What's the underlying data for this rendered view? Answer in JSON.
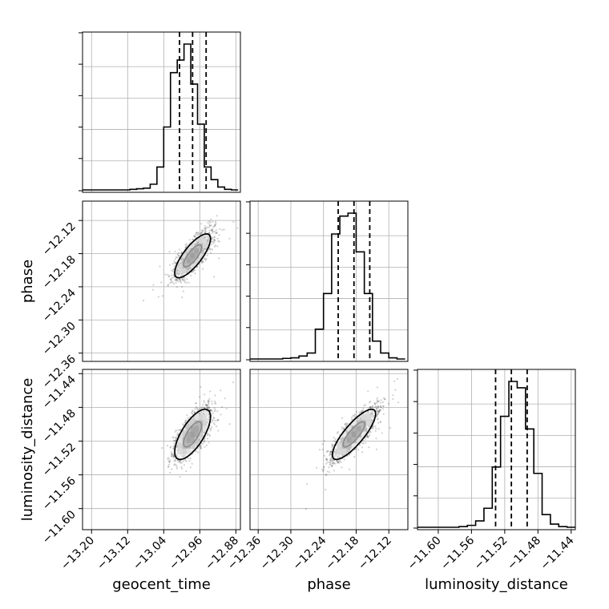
{
  "chart_data": {
    "type": "corner",
    "parameters": [
      "geocent_time",
      "phase",
      "luminosity_distance"
    ],
    "axis_labels": {
      "geocent_time": "geocent_time",
      "phase": "phase",
      "luminosity_distance": "luminosity_distance"
    },
    "ranges": {
      "geocent_time": [
        -13.22,
        -12.87
      ],
      "phase": [
        -12.375,
        -12.085
      ],
      "luminosity_distance": [
        -11.625,
        -11.435
      ]
    },
    "ticks": {
      "geocent_time": [
        "−13.20",
        "−13.12",
        "−13.04",
        "−12.96",
        "−12.88"
      ],
      "phase": [
        "−12.36",
        "−12.30",
        "−12.24",
        "−12.18",
        "−12.12"
      ],
      "luminosity_distance": [
        "−11.60",
        "−11.56",
        "−11.52",
        "−11.48",
        "−11.44"
      ]
    },
    "tick_values": {
      "geocent_time": [
        -13.2,
        -13.12,
        -13.04,
        -12.96,
        -12.88
      ],
      "phase": [
        -12.36,
        -12.3,
        -12.24,
        -12.18,
        -12.12
      ],
      "luminosity_distance": [
        -11.6,
        -11.56,
        -11.52,
        -11.48,
        -11.44
      ]
    },
    "quantiles": {
      "geocent_time": [
        -13.005,
        -12.976,
        -12.946
      ],
      "phase": [
        -12.213,
        -12.184,
        -12.155
      ],
      "luminosity_distance": [
        -11.531,
        -11.512,
        -11.493
      ]
    },
    "histograms": {
      "geocent_time": {
        "bin_edges": [
          -13.22,
          -13.205,
          -13.19,
          -13.175,
          -13.16,
          -13.145,
          -13.13,
          -13.115,
          -13.1,
          -13.085,
          -13.07,
          -13.055,
          -13.04,
          -13.025,
          -13.01,
          -12.995,
          -12.98,
          -12.965,
          -12.95,
          -12.935,
          -12.92,
          -12.905,
          -12.89,
          -12.875
        ],
        "counts": [
          0,
          0,
          0,
          0,
          0,
          0,
          0,
          1,
          2,
          3,
          10,
          40,
          110,
          205,
          227,
          255,
          185,
          115,
          40,
          18,
          5,
          1,
          0
        ]
      },
      "phase": {
        "bin_edges": [
          -12.375,
          -12.36,
          -12.345,
          -12.33,
          -12.315,
          -12.3,
          -12.285,
          -12.27,
          -12.255,
          -12.24,
          -12.225,
          -12.21,
          -12.195,
          -12.18,
          -12.165,
          -12.15,
          -12.135,
          -12.12,
          -12.105,
          -12.09
        ],
        "counts": [
          0,
          0,
          0,
          0,
          1,
          2,
          5,
          10,
          50,
          110,
          210,
          240,
          245,
          180,
          110,
          30,
          10,
          2,
          0
        ]
      },
      "luminosity_distance": {
        "bin_edges": [
          -11.625,
          -11.615,
          -11.605,
          -11.595,
          -11.585,
          -11.575,
          -11.565,
          -11.555,
          -11.545,
          -11.535,
          -11.525,
          -11.515,
          -11.505,
          -11.495,
          -11.485,
          -11.475,
          -11.465,
          -11.455,
          -11.445,
          -11.435
        ],
        "counts": [
          0,
          0,
          0,
          0,
          0,
          1,
          3,
          10,
          30,
          95,
          175,
          230,
          220,
          155,
          85,
          20,
          5,
          1,
          0
        ]
      }
    },
    "joint": [
      {
        "x": "geocent_time",
        "y": "phase",
        "center": [
          -12.976,
          -12.184
        ],
        "sd": [
          0.02,
          0.02
        ],
        "rho": 0.78
      },
      {
        "x": "geocent_time",
        "y": "luminosity_distance",
        "center": [
          -12.976,
          -11.512
        ],
        "sd": [
          0.02,
          0.015
        ],
        "rho": 0.7
      },
      {
        "x": "phase",
        "y": "luminosity_distance",
        "center": [
          -12.184,
          -11.512
        ],
        "sd": [
          0.02,
          0.015
        ],
        "rho": 0.82
      }
    ],
    "contour_levels": [
      0.39,
      0.86
    ],
    "grid": true
  }
}
